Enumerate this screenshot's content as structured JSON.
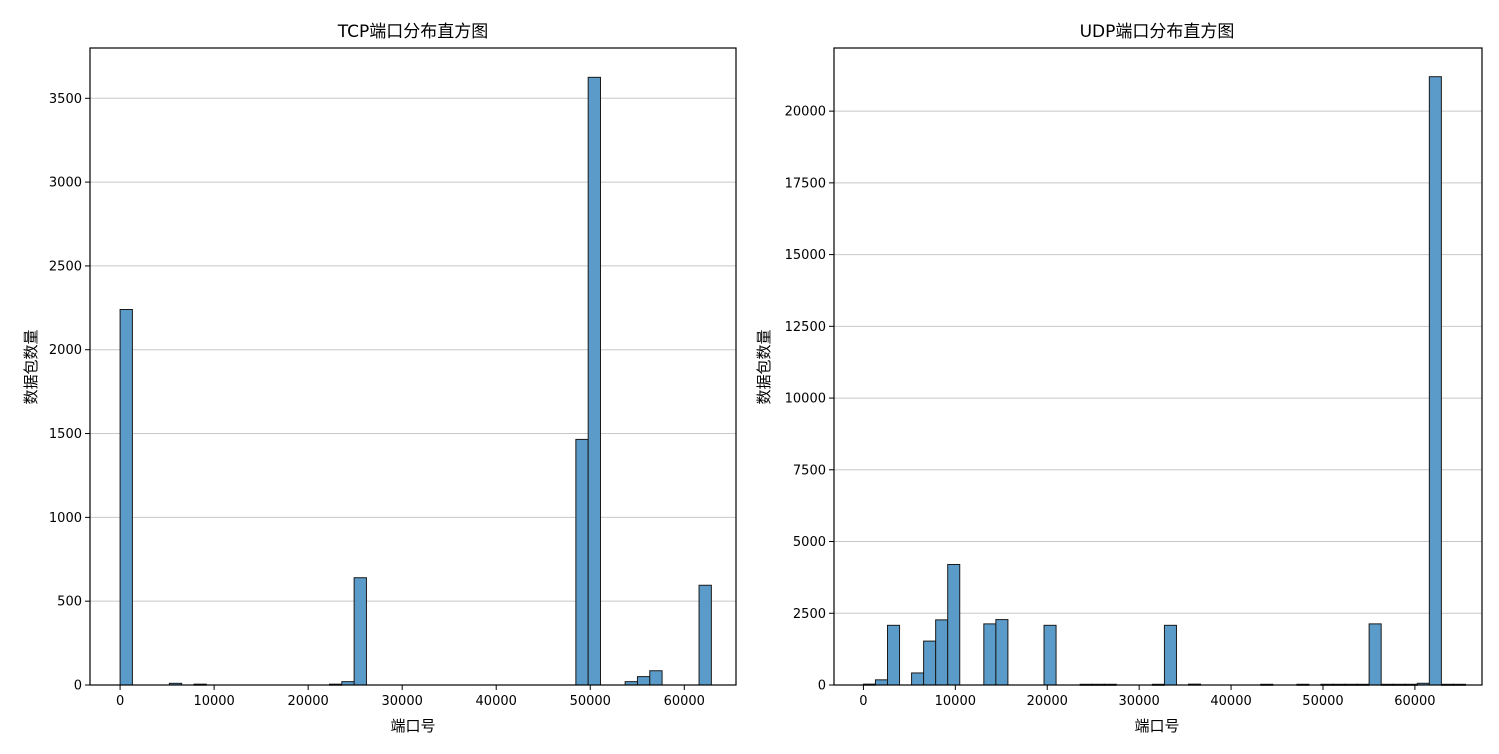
{
  "chart_data": [
    {
      "type": "bar",
      "title": "TCP端口分布直方图",
      "xlabel": "端口号",
      "ylabel": "数据包数量",
      "xlim": [
        -3200,
        65500
      ],
      "ylim": [
        0,
        3800
      ],
      "xticks": [
        0,
        10000,
        20000,
        30000,
        40000,
        50000,
        60000
      ],
      "yticks": [
        0,
        500,
        1000,
        1500,
        2000,
        2500,
        3000,
        3500
      ],
      "grid_axis": "y",
      "bar_color": "#5b9bc9",
      "bin_width": 1310,
      "bins": [
        {
          "x": 0,
          "y": 2240
        },
        {
          "x": 5240,
          "y": 10
        },
        {
          "x": 7860,
          "y": 5
        },
        {
          "x": 22270,
          "y": 5
        },
        {
          "x": 23580,
          "y": 20
        },
        {
          "x": 24890,
          "y": 640
        },
        {
          "x": 48470,
          "y": 1465
        },
        {
          "x": 49780,
          "y": 3625
        },
        {
          "x": 53710,
          "y": 20
        },
        {
          "x": 55020,
          "y": 50
        },
        {
          "x": 56330,
          "y": 85
        },
        {
          "x": 61570,
          "y": 595
        }
      ]
    },
    {
      "type": "bar",
      "title": "UDP端口分布直方图",
      "xlabel": "端口号",
      "ylabel": "数据包数量",
      "xlim": [
        -3200,
        67300
      ],
      "ylim": [
        0,
        22200
      ],
      "xticks": [
        0,
        10000,
        20000,
        30000,
        40000,
        50000,
        60000
      ],
      "yticks": [
        0,
        2500,
        5000,
        7500,
        10000,
        12500,
        15000,
        17500,
        20000
      ],
      "grid_axis": "y",
      "bar_color": "#5b9bc9",
      "bin_width": 1310,
      "bins": [
        {
          "x": 0,
          "y": 30
        },
        {
          "x": 1310,
          "y": 180
        },
        {
          "x": 2620,
          "y": 2080
        },
        {
          "x": 5240,
          "y": 420
        },
        {
          "x": 6550,
          "y": 1530
        },
        {
          "x": 7860,
          "y": 2270
        },
        {
          "x": 9170,
          "y": 4200
        },
        {
          "x": 13100,
          "y": 2130
        },
        {
          "x": 14410,
          "y": 2280
        },
        {
          "x": 19650,
          "y": 2080
        },
        {
          "x": 23580,
          "y": 25
        },
        {
          "x": 24890,
          "y": 25
        },
        {
          "x": 26200,
          "y": 25
        },
        {
          "x": 31440,
          "y": 25
        },
        {
          "x": 32750,
          "y": 2080
        },
        {
          "x": 35370,
          "y": 30
        },
        {
          "x": 43230,
          "y": 25
        },
        {
          "x": 47160,
          "y": 25
        },
        {
          "x": 49780,
          "y": 25
        },
        {
          "x": 51090,
          "y": 25
        },
        {
          "x": 52400,
          "y": 25
        },
        {
          "x": 53710,
          "y": 25
        },
        {
          "x": 55020,
          "y": 2130
        },
        {
          "x": 56330,
          "y": 25
        },
        {
          "x": 57640,
          "y": 25
        },
        {
          "x": 58950,
          "y": 25
        },
        {
          "x": 60260,
          "y": 60
        },
        {
          "x": 61570,
          "y": 21200
        },
        {
          "x": 62880,
          "y": 25
        },
        {
          "x": 64190,
          "y": 25
        }
      ]
    }
  ]
}
